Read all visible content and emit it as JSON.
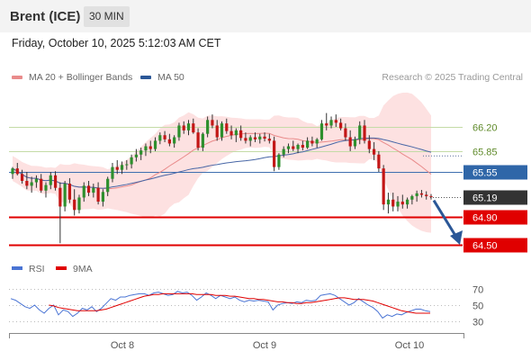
{
  "header": {
    "instrument": "Brent (ICE)",
    "timeframe": "30 MIN"
  },
  "timestamp": "Friday, October 10, 2025 5:12:03 AM CET",
  "legend": {
    "ma20_bollinger": {
      "label": "MA 20 + Bollinger Bands",
      "color": "#e98b8b"
    },
    "ma50": {
      "label": "MA 50",
      "color": "#2b5797"
    }
  },
  "copyright": "Research © 2025 Trading Central",
  "colors": {
    "bull_candle": "#2d8f2d",
    "bear_candle": "#c31616",
    "bollinger_fill": "#fde1e1",
    "ma20": "#e98b8b",
    "ma50": "#4766a6",
    "resistance": "#c4dba6",
    "pivot_line": "#3f6faf",
    "support": "#e00000",
    "arrow": "#2b5797",
    "last_price_badge": "#333333",
    "rsi": "#4a74d4",
    "rsi_ma": "#e00000"
  },
  "chart_data": [
    {
      "type": "candlestick",
      "title": "Brent (ICE) 30 MIN",
      "x_tick_labels": [
        "Oct 8",
        "Oct 9",
        "Oct 10"
      ],
      "y_range": [
        64.3,
        66.5
      ],
      "last_price": 65.19,
      "candles": [
        [
          65.52,
          65.62,
          65.45,
          65.6
        ],
        [
          65.6,
          65.68,
          65.5,
          65.52
        ],
        [
          65.52,
          65.58,
          65.38,
          65.42
        ],
        [
          65.42,
          65.55,
          65.3,
          65.35
        ],
        [
          65.35,
          65.48,
          65.25,
          65.4
        ],
        [
          65.4,
          65.5,
          65.32,
          65.45
        ],
        [
          65.45,
          65.52,
          65.25,
          65.28
        ],
        [
          65.28,
          65.4,
          65.18,
          65.36
        ],
        [
          65.36,
          65.55,
          65.3,
          65.5
        ],
        [
          65.5,
          65.56,
          65.28,
          65.32
        ],
        [
          65.32,
          65.4,
          64.52,
          65.05
        ],
        [
          65.05,
          65.42,
          64.98,
          65.38
        ],
        [
          65.38,
          65.46,
          65.1,
          65.15
        ],
        [
          65.15,
          65.3,
          64.92,
          65.0
        ],
        [
          65.0,
          65.22,
          64.95,
          65.18
        ],
        [
          65.18,
          65.4,
          65.12,
          65.35
        ],
        [
          65.35,
          65.42,
          65.2,
          65.25
        ],
        [
          65.25,
          65.38,
          65.18,
          65.32
        ],
        [
          65.32,
          65.4,
          65.08,
          65.12
        ],
        [
          65.12,
          65.3,
          65.05,
          65.26
        ],
        [
          65.26,
          65.48,
          65.2,
          65.45
        ],
        [
          65.45,
          65.68,
          65.4,
          65.62
        ],
        [
          65.62,
          65.72,
          65.52,
          65.58
        ],
        [
          65.58,
          65.7,
          65.52,
          65.65
        ],
        [
          65.65,
          65.72,
          65.58,
          65.66
        ],
        [
          65.66,
          65.8,
          65.6,
          65.76
        ],
        [
          65.76,
          65.88,
          65.7,
          65.8
        ],
        [
          65.8,
          65.9,
          65.72,
          65.86
        ],
        [
          65.86,
          65.96,
          65.78,
          65.92
        ],
        [
          65.92,
          66.0,
          65.82,
          65.88
        ],
        [
          65.88,
          66.05,
          65.85,
          66.0
        ],
        [
          66.0,
          66.12,
          65.95,
          66.08
        ],
        [
          66.08,
          66.14,
          65.98,
          66.02
        ],
        [
          66.02,
          66.1,
          65.92,
          65.96
        ],
        [
          65.96,
          66.08,
          65.9,
          66.05
        ],
        [
          66.05,
          66.26,
          66.0,
          66.22
        ],
        [
          66.22,
          66.28,
          66.1,
          66.15
        ],
        [
          66.15,
          66.3,
          66.08,
          66.25
        ],
        [
          66.25,
          66.32,
          66.1,
          66.12
        ],
        [
          66.12,
          66.18,
          65.86,
          65.9
        ],
        [
          65.9,
          66.12,
          65.85,
          66.1
        ],
        [
          66.1,
          66.35,
          66.05,
          66.3
        ],
        [
          66.3,
          66.38,
          66.18,
          66.22
        ],
        [
          66.22,
          66.3,
          66.0,
          66.05
        ],
        [
          66.05,
          66.28,
          66.0,
          66.25
        ],
        [
          66.25,
          66.32,
          66.1,
          66.14
        ],
        [
          66.14,
          66.22,
          66.02,
          66.08
        ],
        [
          66.08,
          66.18,
          65.98,
          66.15
        ],
        [
          66.15,
          66.22,
          66.0,
          66.04
        ],
        [
          66.04,
          66.12,
          65.96,
          66.0
        ],
        [
          66.0,
          66.08,
          65.92,
          66.05
        ],
        [
          66.05,
          66.12,
          65.98,
          66.02
        ],
        [
          66.02,
          66.1,
          65.96,
          66.06
        ],
        [
          66.06,
          66.12,
          65.99,
          66.03
        ],
        [
          66.03,
          66.1,
          65.96,
          66.0
        ],
        [
          66.0,
          66.06,
          65.56,
          65.62
        ],
        [
          65.62,
          65.82,
          65.58,
          65.8
        ],
        [
          65.8,
          65.92,
          65.76,
          65.88
        ],
        [
          65.88,
          65.96,
          65.82,
          65.92
        ],
        [
          65.92,
          66.0,
          65.85,
          65.88
        ],
        [
          65.88,
          65.96,
          65.82,
          65.94
        ],
        [
          65.94,
          66.0,
          65.86,
          65.9
        ],
        [
          65.9,
          66.05,
          65.88,
          66.0
        ],
        [
          66.0,
          66.06,
          65.92,
          65.96
        ],
        [
          65.96,
          66.04,
          65.9,
          66.02
        ],
        [
          66.02,
          66.3,
          66.0,
          66.25
        ],
        [
          66.25,
          66.4,
          66.15,
          66.22
        ],
        [
          66.22,
          66.35,
          66.18,
          66.3
        ],
        [
          66.3,
          66.38,
          66.2,
          66.26
        ],
        [
          66.26,
          66.32,
          66.15,
          66.18
        ],
        [
          66.18,
          66.25,
          66.0,
          66.05
        ],
        [
          66.05,
          66.15,
          65.85,
          65.92
        ],
        [
          65.92,
          66.06,
          65.88,
          66.02
        ],
        [
          66.02,
          66.28,
          65.95,
          66.22
        ],
        [
          66.22,
          66.3,
          65.96,
          66.0
        ],
        [
          66.0,
          66.08,
          65.82,
          65.88
        ],
        [
          65.88,
          65.98,
          65.72,
          65.8
        ],
        [
          65.8,
          65.85,
          65.55,
          65.6
        ],
        [
          65.6,
          65.65,
          65.0,
          65.08
        ],
        [
          65.08,
          65.25,
          64.95,
          65.15
        ],
        [
          65.15,
          65.25,
          64.98,
          65.05
        ],
        [
          65.05,
          65.2,
          64.98,
          65.12
        ],
        [
          65.12,
          65.22,
          65.02,
          65.08
        ],
        [
          65.08,
          65.18,
          65.02,
          65.15
        ],
        [
          65.15,
          65.22,
          65.08,
          65.2
        ],
        [
          65.2,
          65.28,
          65.12,
          65.24
        ],
        [
          65.24,
          65.29,
          65.18,
          65.22
        ],
        [
          65.22,
          65.27,
          65.15,
          65.2
        ],
        [
          65.2,
          65.23,
          65.15,
          65.19
        ]
      ],
      "indicators": [
        "MA 20 + Bollinger Bands",
        "MA 50"
      ],
      "levels": [
        {
          "value": 66.2,
          "label": "66.20",
          "kind": "resistance"
        },
        {
          "value": 65.85,
          "label": "65.85",
          "kind": "resistance"
        },
        {
          "value": 65.55,
          "label": "65.55",
          "kind": "pivot"
        },
        {
          "value": 65.19,
          "label": "65.19",
          "kind": "last_price"
        },
        {
          "value": 64.9,
          "label": "64.90",
          "kind": "support"
        },
        {
          "value": 64.5,
          "label": "64.50",
          "kind": "support"
        }
      ],
      "forecast_arrow": {
        "from": 65.19,
        "to": 64.5,
        "direction": "down"
      }
    },
    {
      "type": "line",
      "legend": [
        "RSI",
        "9MA"
      ],
      "y_range": [
        20,
        80
      ],
      "y_ticks": [
        30,
        50,
        70
      ],
      "series": [
        {
          "name": "RSI",
          "values": [
            58,
            56,
            52,
            48,
            46,
            50,
            44,
            40,
            46,
            50,
            38,
            44,
            42,
            36,
            40,
            46,
            44,
            48,
            42,
            46,
            52,
            58,
            56,
            60,
            60,
            62,
            63,
            64,
            64,
            62,
            65,
            66,
            64,
            62,
            63,
            67,
            65,
            66,
            62,
            56,
            60,
            65,
            62,
            58,
            62,
            60,
            58,
            60,
            56,
            54,
            56,
            55,
            56,
            55,
            54,
            44,
            50,
            52,
            53,
            52,
            54,
            53,
            56,
            55,
            56,
            62,
            63,
            64,
            62,
            58,
            54,
            50,
            53,
            58,
            54,
            50,
            47,
            42,
            34,
            38,
            36,
            39,
            38,
            41,
            43,
            45,
            45,
            43,
            42
          ]
        },
        {
          "name": "9MA",
          "values": [
            null,
            null,
            null,
            null,
            null,
            null,
            null,
            null,
            50,
            49,
            47,
            46,
            45,
            44,
            43,
            43,
            43,
            43,
            43,
            44,
            45,
            47,
            49,
            51,
            53,
            55,
            57,
            59,
            61,
            62,
            63,
            63,
            64,
            64,
            64,
            64,
            64,
            64,
            64,
            63,
            63,
            63,
            63,
            62,
            62,
            62,
            61,
            61,
            60,
            59,
            58,
            58,
            57,
            57,
            56,
            55,
            54,
            54,
            53,
            53,
            52,
            52,
            53,
            53,
            54,
            55,
            56,
            57,
            58,
            59,
            59,
            58,
            57,
            57,
            57,
            56,
            55,
            53,
            51,
            49,
            47,
            45,
            43,
            42,
            41,
            40,
            40,
            40,
            40
          ]
        }
      ]
    }
  ]
}
